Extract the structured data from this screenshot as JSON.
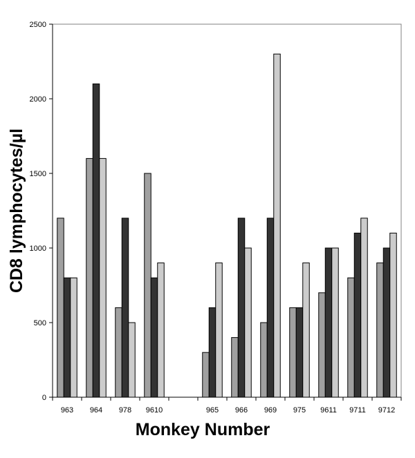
{
  "chart_data": {
    "type": "bar",
    "xlabel": "Monkey Number",
    "ylabel": "CD8 lymphocytes/µl",
    "ylim": [
      0,
      2500
    ],
    "yticks": [
      0,
      500,
      1000,
      1500,
      2000,
      2500
    ],
    "grid": false,
    "legend": "none",
    "categories": [
      "963",
      "964",
      "978",
      "9610",
      "",
      "965",
      "966",
      "969",
      "975",
      "9611",
      "9711",
      "9712"
    ],
    "series": [
      {
        "color": "#a0a0a0",
        "values": [
          1200,
          1600,
          600,
          1500,
          null,
          300,
          400,
          500,
          600,
          700,
          800,
          900
        ]
      },
      {
        "color": "#333333",
        "values": [
          800,
          2100,
          1200,
          800,
          null,
          600,
          1200,
          1200,
          600,
          1000,
          1100,
          1000
        ]
      },
      {
        "color": "#cccccc",
        "values": [
          800,
          1600,
          500,
          900,
          null,
          900,
          1000,
          2300,
          900,
          1000,
          1200,
          1100
        ]
      }
    ]
  }
}
